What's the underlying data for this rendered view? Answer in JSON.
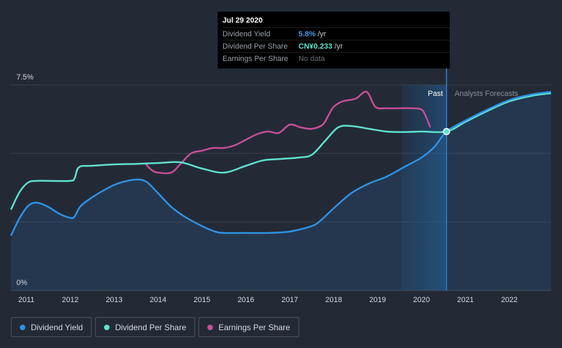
{
  "tooltip": {
    "date": "Jul 29 2020",
    "rows": [
      {
        "label": "Dividend Yield",
        "value": "5.8%",
        "unit": "/yr",
        "color": "#3b9ef0"
      },
      {
        "label": "Dividend Per Share",
        "value": "CN¥0.233",
        "unit": "/yr",
        "color": "#5fe3d0"
      },
      {
        "label": "Earnings Per Share",
        "value": "No data",
        "unit": "",
        "color": "#6b717b"
      }
    ]
  },
  "legend": [
    {
      "label": "Dividend Yield",
      "color": "#2e93e6"
    },
    {
      "label": "Dividend Per Share",
      "color": "#5fe3d0"
    },
    {
      "label": "Earnings Per Share",
      "color": "#c84f97"
    }
  ],
  "chart_data": {
    "type": "line",
    "title": "",
    "xlabel": "",
    "ylabel": "",
    "xlim": [
      2010.65,
      2022.95
    ],
    "ylim": [
      0,
      7.5
    ],
    "y_tick_labels": [
      "0%",
      "7.5%"
    ],
    "x_ticks": [
      2011,
      2012,
      2013,
      2014,
      2015,
      2016,
      2017,
      2018,
      2019,
      2020,
      2021,
      2022
    ],
    "x_tick_labels": [
      "2011",
      "2012",
      "2013",
      "2014",
      "2015",
      "2016",
      "2017",
      "2018",
      "2019",
      "2020",
      "2021",
      "2022"
    ],
    "region_labels": {
      "past": "Past",
      "forecast": "Analysts Forecasts"
    },
    "past_region": [
      2019.55,
      2020.57
    ],
    "marker": {
      "x": 2020.57,
      "y": 5.8
    },
    "series": [
      {
        "name": "Dividend Yield",
        "color": "#2e93e6",
        "x": [
          2010.65,
          2010.85,
          2011.05,
          2011.25,
          2011.5,
          2011.75,
          2012.0,
          2012.1,
          2012.25,
          2012.6,
          2013.0,
          2013.3,
          2013.55,
          2013.75,
          2014.0,
          2014.3,
          2014.6,
          2015.0,
          2015.3,
          2015.5,
          2016.0,
          2016.5,
          2017.0,
          2017.5,
          2017.7,
          2018.0,
          2018.4,
          2018.8,
          2019.2,
          2019.6,
          2020.0,
          2020.3,
          2020.57,
          2021.0,
          2021.5,
          2022.0,
          2022.5,
          2022.95
        ],
        "y": [
          2.0,
          2.65,
          3.1,
          3.2,
          3.05,
          2.8,
          2.65,
          2.7,
          3.1,
          3.5,
          3.85,
          4.0,
          4.05,
          3.95,
          3.55,
          3.05,
          2.7,
          2.35,
          2.15,
          2.1,
          2.1,
          2.1,
          2.15,
          2.35,
          2.55,
          3.0,
          3.55,
          3.9,
          4.15,
          4.5,
          4.85,
          5.25,
          5.8,
          6.2,
          6.6,
          6.95,
          7.15,
          7.25
        ]
      },
      {
        "name": "Dividend Per Share",
        "color": "#5fe3d0",
        "x": [
          2010.65,
          2010.85,
          2011.05,
          2011.25,
          2011.5,
          2012.0,
          2012.1,
          2012.2,
          2012.5,
          2013.0,
          2013.5,
          2014.0,
          2014.5,
          2015.0,
          2015.5,
          2016.0,
          2016.4,
          2016.8,
          2017.2,
          2017.5,
          2017.8,
          2018.1,
          2018.4,
          2018.8,
          2019.2,
          2019.6,
          2020.0,
          2020.57,
          2021.0,
          2021.5,
          2022.0,
          2022.5,
          2022.95
        ],
        "y": [
          2.95,
          3.6,
          3.95,
          4.0,
          4.0,
          4.0,
          4.1,
          4.5,
          4.55,
          4.6,
          4.62,
          4.65,
          4.68,
          4.45,
          4.3,
          4.55,
          4.75,
          4.8,
          4.85,
          4.95,
          5.45,
          5.95,
          6.0,
          5.9,
          5.8,
          5.78,
          5.8,
          5.8,
          6.15,
          6.55,
          6.9,
          7.1,
          7.2
        ]
      },
      {
        "name": "Earnings Per Share",
        "color": "#c84f97",
        "x": [
          2013.7,
          2013.85,
          2014.0,
          2014.3,
          2014.5,
          2014.75,
          2015.0,
          2015.25,
          2015.5,
          2015.75,
          2016.0,
          2016.25,
          2016.5,
          2016.75,
          2017.0,
          2017.25,
          2017.5,
          2017.75,
          2017.9,
          2018.0,
          2018.2,
          2018.5,
          2018.75,
          2018.95,
          2019.2,
          2019.5,
          2019.8,
          2020.0,
          2020.1,
          2020.2
        ],
        "y": [
          4.65,
          4.4,
          4.3,
          4.3,
          4.6,
          5.0,
          5.1,
          5.2,
          5.2,
          5.3,
          5.5,
          5.7,
          5.8,
          5.75,
          6.05,
          5.95,
          5.9,
          6.05,
          6.45,
          6.7,
          6.9,
          7.0,
          7.25,
          6.7,
          6.65,
          6.65,
          6.65,
          6.6,
          6.35,
          5.95
        ]
      }
    ]
  }
}
